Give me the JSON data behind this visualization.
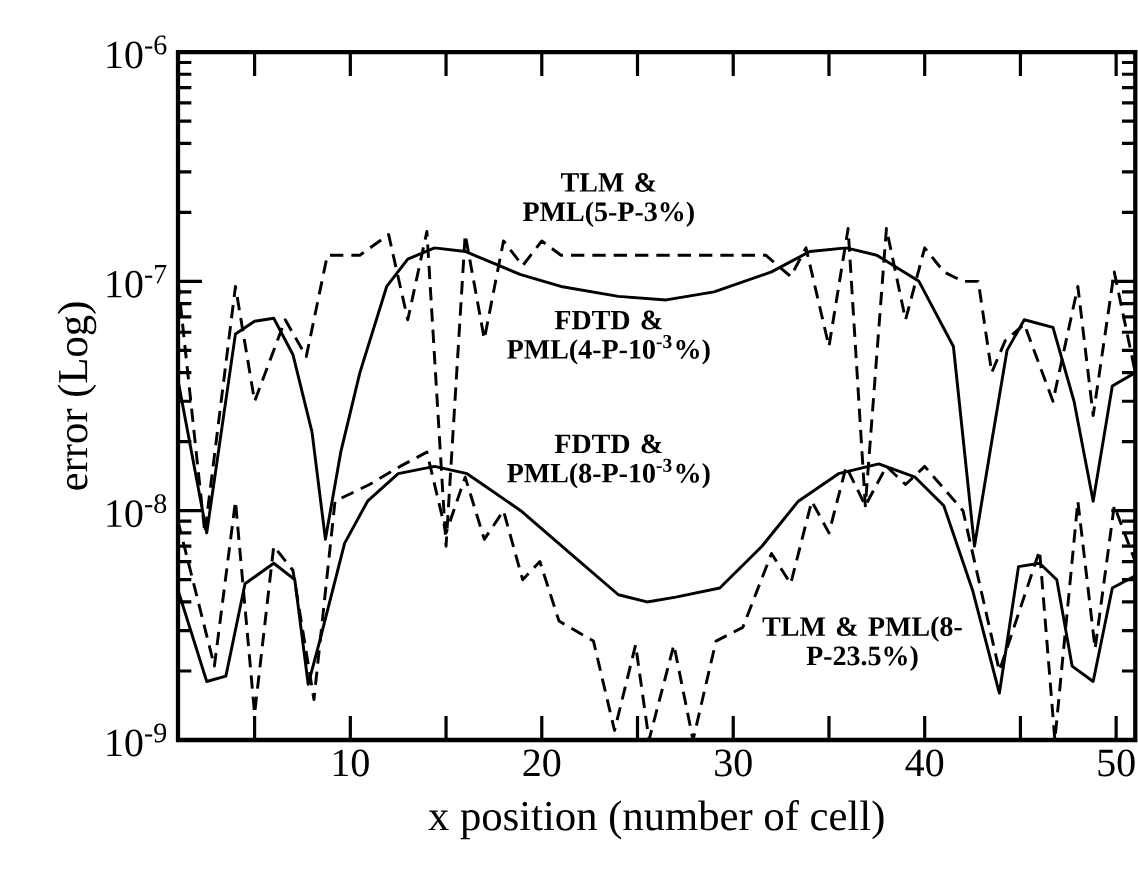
{
  "chart_data": {
    "type": "line",
    "xlabel": "x position (number of cell)",
    "ylabel": "error (Log)",
    "log": "y",
    "xlim": [
      1,
      51
    ],
    "ylim": [
      1e-09,
      1e-06
    ],
    "xticks": [
      {
        "value": 5,
        "label": null
      },
      10,
      {
        "value": 15,
        "label": null
      },
      20,
      {
        "value": 25,
        "label": null
      },
      30,
      {
        "value": 35,
        "label": null
      },
      40,
      {
        "value": 45,
        "label": null
      },
      50
    ],
    "yticks": [
      {
        "value": 1e-09,
        "label": "10$^{-9}$"
      },
      {
        "value": 1e-08,
        "label": "10$^{-8}$"
      },
      {
        "value": 1e-07,
        "label": "10$^{-7}$"
      },
      {
        "value": 1e-06,
        "label": "10$^{-6}$"
      }
    ],
    "series": [
      {
        "color": "#000000",
        "line_style": "solid",
        "x": [
          1,
          2.5,
          4,
          5,
          6,
          7,
          8,
          8.7,
          9.5,
          10.5,
          11.9,
          13,
          14.4,
          16,
          18.9,
          21,
          24,
          26.5,
          29,
          32,
          34,
          35.9,
          37.5,
          39.7,
          41.5,
          42.6,
          43.5,
          44.3,
          45.2,
          46.7,
          47.8,
          48.8,
          49.8,
          51
        ],
        "values": [
          3.7e-08,
          8e-09,
          5.9e-08,
          6.7e-08,
          6.9e-08,
          4.8e-08,
          2.2e-08,
          7.5e-09,
          1.8e-08,
          4e-08,
          9.5e-08,
          1.25e-07,
          1.4e-07,
          1.35e-07,
          1.07e-07,
          9.5e-08,
          8.6e-08,
          8.3e-08,
          9e-08,
          1.1e-07,
          1.35e-07,
          1.4e-07,
          1.3e-07,
          1e-07,
          5.2e-08,
          7e-09,
          2e-08,
          5e-08,
          6.8e-08,
          6.3e-08,
          3e-08,
          1.1e-08,
          3.5e-08,
          4e-08
        ]
      },
      {
        "color": "#000000",
        "line_style": "solid",
        "x": [
          1,
          2.5,
          3.5,
          4.5,
          6,
          7.1,
          7.8,
          8.4,
          9.7,
          10.9,
          12.5,
          14.4,
          16.1,
          18.9,
          21.5,
          24,
          25.5,
          27,
          29.3,
          31.5,
          33.4,
          35.5,
          37.6,
          39.5,
          41,
          42.5,
          43.9,
          44.9,
          46,
          46.9,
          47.7,
          48.8,
          49.8,
          51
        ],
        "values": [
          4.5e-09,
          1.8e-09,
          1.9e-09,
          4.8e-09,
          5.9e-09,
          5e-09,
          1.75e-09,
          2.7e-09,
          7.2e-09,
          1.1e-08,
          1.45e-08,
          1.56e-08,
          1.45e-08,
          1e-08,
          6.5e-09,
          4.3e-09,
          4e-09,
          4.2e-09,
          4.6e-09,
          7e-09,
          1.1e-08,
          1.45e-08,
          1.6e-08,
          1.4e-08,
          1.05e-08,
          4.5e-09,
          1.6e-09,
          5.7e-09,
          5.9e-09,
          5e-09,
          2.1e-09,
          1.8e-09,
          4.6e-09,
          5.2e-09
        ]
      },
      {
        "color": "#000000",
        "line_style": "dashed",
        "x": [
          1,
          2.4,
          4,
          5,
          6.6,
          7.7,
          8.8,
          10.5,
          12,
          13,
          14,
          15,
          16,
          17,
          18,
          19,
          20,
          21,
          25,
          30,
          31.7,
          33,
          33.8,
          35,
          36,
          36.9,
          38,
          39,
          40,
          41,
          42,
          42.8,
          43.5,
          44.2,
          45.2,
          46.7,
          48,
          48.8,
          49.9,
          51
        ],
        "values": [
          1e-07,
          8e-09,
          9.5e-08,
          3e-08,
          6.8e-08,
          4.7e-08,
          1.3e-07,
          1.3e-07,
          1.6e-07,
          6.8e-08,
          1.65e-07,
          7e-09,
          1.6e-07,
          5.6e-08,
          1.5e-07,
          1.17e-07,
          1.5e-07,
          1.3e-07,
          1.3e-07,
          1.3e-07,
          1.3e-07,
          1.05e-07,
          1.4e-07,
          5.2e-08,
          1.7e-07,
          1.05e-08,
          1.7e-07,
          6.8e-08,
          1.4e-07,
          1.1e-07,
          1e-07,
          1e-07,
          4e-08,
          5.5e-08,
          6.5e-08,
          3e-08,
          9.5e-08,
          2.6e-08,
          1.1e-07,
          4e-08
        ]
      },
      {
        "color": "#000000",
        "line_style": "dashed",
        "x": [
          1,
          2.9,
          4,
          5,
          6,
          7,
          8.1,
          9.2,
          11,
          12.6,
          14,
          15,
          16,
          17,
          18,
          19,
          19.9,
          20.9,
          22.7,
          23.8,
          24.9,
          25.6,
          26.9,
          27.9,
          29.1,
          30.5,
          32,
          33,
          34.1,
          35,
          35.9,
          36.9,
          38,
          39,
          40,
          42,
          43.9,
          46,
          46.8,
          48,
          48.9,
          49.9,
          51
        ],
        "values": [
          9e-09,
          2.1e-09,
          1.1e-08,
          1.3e-09,
          7e-09,
          5.5e-09,
          1.5e-09,
          1.1e-08,
          1.3e-08,
          1.56e-08,
          1.8e-08,
          8e-09,
          1.4e-08,
          7.5e-09,
          1e-08,
          5e-09,
          6e-09,
          3.3e-09,
          2.7e-09,
          1.1e-09,
          2.6e-09,
          1e-09,
          2.6e-09,
          1e-09,
          2.7e-09,
          3.1e-09,
          6.5e-09,
          4.8e-09,
          1.1e-08,
          8e-09,
          1.56e-08,
          1.05e-08,
          1.56e-08,
          1.3e-08,
          1.56e-08,
          1e-08,
          2e-09,
          6.7e-09,
          1e-09,
          1.1e-08,
          2.5e-09,
          1.05e-08,
          6e-09
        ]
      }
    ],
    "annotations": [
      "TLM & PML(5-P-3%)",
      "FDTD & PML(4-P-10$^{-3}$%)",
      "FDTD & PML(8-P-10$^{-3}$%)",
      "TLM & PML(8-P-23.5%)"
    ]
  }
}
